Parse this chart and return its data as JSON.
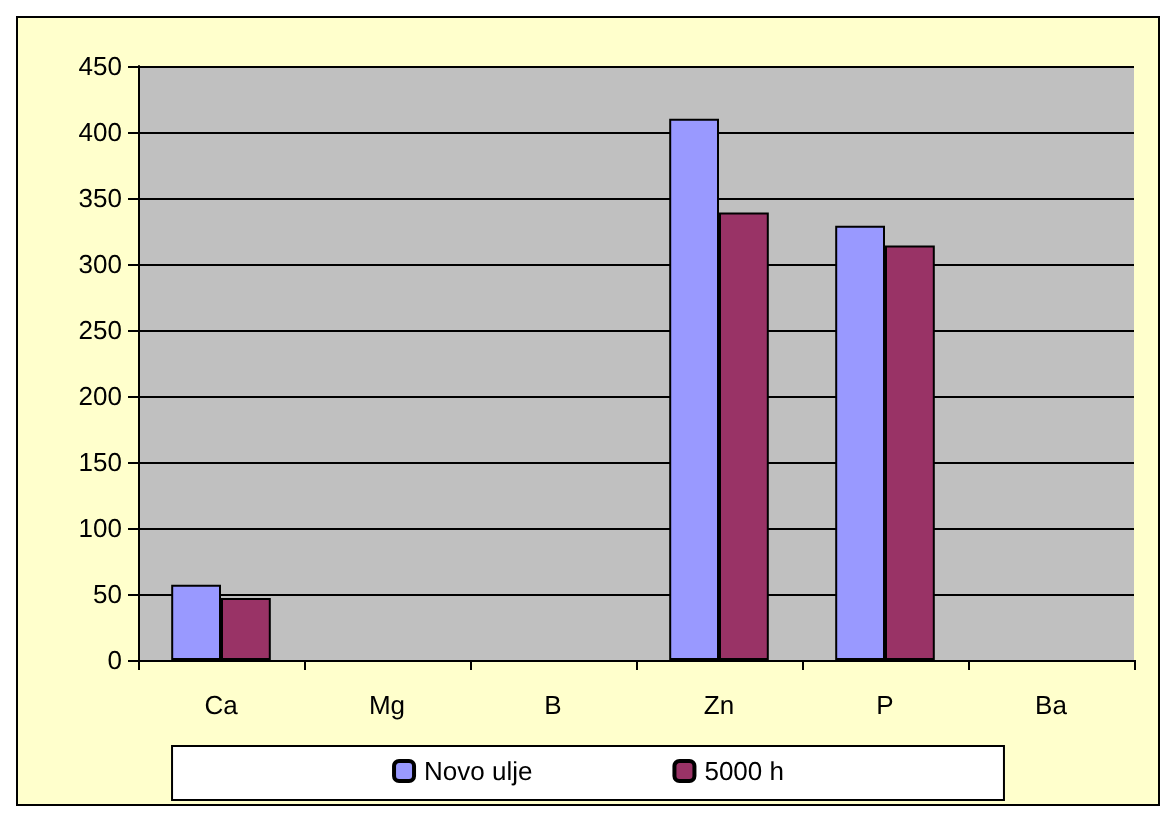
{
  "chart_data": {
    "type": "bar",
    "categories": [
      "Ca",
      "Mg",
      "B",
      "Zn",
      "P",
      "Ba"
    ],
    "series": [
      {
        "name": "Novo ulje",
        "color": "#9999ff",
        "values": [
          57,
          null,
          null,
          410,
          329,
          null
        ]
      },
      {
        "name": "5000 h",
        "color": "#993366",
        "values": [
          47,
          null,
          null,
          339,
          314,
          null
        ]
      }
    ],
    "ylim": [
      0,
      450
    ],
    "yticks": [
      0,
      50,
      100,
      150,
      200,
      250,
      300,
      350,
      400,
      450
    ],
    "grid": "y",
    "legend": "bottom"
  }
}
